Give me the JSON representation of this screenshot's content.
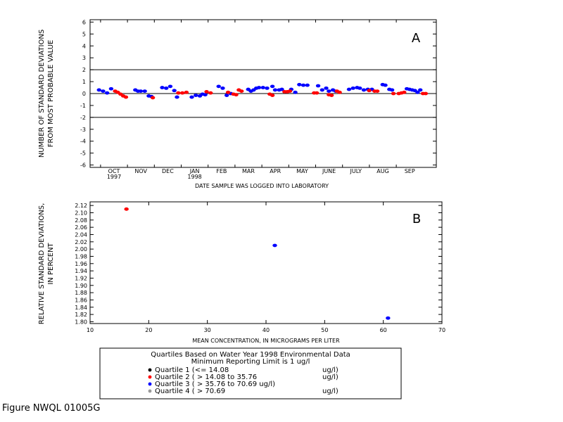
{
  "figure_label": "Figure NWQL 01005G",
  "chart_data": [
    {
      "type": "scatter",
      "panel_letter": "A",
      "xlabel": "DATE SAMPLE WAS LOGGED INTO LABORATORY",
      "ylabel": [
        "NUMBER OF STANDARD DEVIATIONS",
        "FROM MOST PROBABLE VALUE"
      ],
      "categories": [
        "OCT",
        "NOV",
        "DEC",
        "JAN",
        "FEB",
        "MAR",
        "APR",
        "MAY",
        "JUNE",
        "JULY",
        "AUG",
        "SEP"
      ],
      "year_labels": [
        {
          "category": "OCT",
          "text": "1997"
        },
        {
          "category": "JAN",
          "text": "1998"
        }
      ],
      "xlim": [
        0,
        12
      ],
      "ylim": [
        -6.2,
        6.2
      ],
      "yticks": [
        -6,
        -5,
        -4,
        -3,
        -2,
        -1,
        0,
        1,
        2,
        3,
        4,
        5,
        6
      ],
      "reference_lines": [
        2,
        0,
        -2
      ],
      "series": [
        {
          "color": "#0000ff",
          "points": [
            [
              0.15,
              0.3
            ],
            [
              0.3,
              0.2
            ],
            [
              0.45,
              0.05
            ],
            [
              0.6,
              0.4
            ],
            [
              1.5,
              0.3
            ],
            [
              1.6,
              0.2
            ],
            [
              1.7,
              0.2
            ],
            [
              1.85,
              0.2
            ],
            [
              2.0,
              -0.2
            ],
            [
              2.1,
              -0.25
            ],
            [
              2.5,
              0.5
            ],
            [
              2.65,
              0.45
            ],
            [
              2.8,
              0.6
            ],
            [
              2.95,
              0.25
            ],
            [
              3.05,
              -0.3
            ],
            [
              3.6,
              -0.3
            ],
            [
              3.75,
              -0.15
            ],
            [
              3.9,
              -0.2
            ],
            [
              4.0,
              -0.05
            ],
            [
              4.1,
              -0.1
            ],
            [
              4.6,
              0.6
            ],
            [
              4.75,
              0.45
            ],
            [
              4.9,
              -0.15
            ],
            [
              5.05,
              0.0
            ],
            [
              5.7,
              0.35
            ],
            [
              5.8,
              0.2
            ],
            [
              5.9,
              0.3
            ],
            [
              6.0,
              0.45
            ],
            [
              6.1,
              0.5
            ],
            [
              6.25,
              0.5
            ],
            [
              6.4,
              0.45
            ],
            [
              6.6,
              0.6
            ],
            [
              6.7,
              0.3
            ],
            [
              6.85,
              0.3
            ],
            [
              6.95,
              0.35
            ],
            [
              7.3,
              0.35
            ],
            [
              7.45,
              0.1
            ],
            [
              7.6,
              0.75
            ],
            [
              7.75,
              0.7
            ],
            [
              7.9,
              0.7
            ],
            [
              8.3,
              0.65
            ],
            [
              8.45,
              0.3
            ],
            [
              8.6,
              0.45
            ],
            [
              8.7,
              0.2
            ],
            [
              8.85,
              0.3
            ],
            [
              8.95,
              0.2
            ],
            [
              9.45,
              0.35
            ],
            [
              9.6,
              0.45
            ],
            [
              9.75,
              0.5
            ],
            [
              9.85,
              0.45
            ],
            [
              10.0,
              0.3
            ],
            [
              10.15,
              0.35
            ],
            [
              10.3,
              0.35
            ],
            [
              10.7,
              0.75
            ],
            [
              10.8,
              0.7
            ],
            [
              10.95,
              0.35
            ],
            [
              11.05,
              0.3
            ],
            [
              11.6,
              0.4
            ],
            [
              11.7,
              0.35
            ],
            [
              11.8,
              0.3
            ],
            [
              11.9,
              0.25
            ],
            [
              12.0,
              0.1
            ],
            [
              12.1,
              0.3
            ]
          ]
        },
        {
          "color": "#ff0000",
          "points": [
            [
              0.75,
              0.2
            ],
            [
              0.85,
              0.1
            ],
            [
              0.95,
              -0.05
            ],
            [
              1.05,
              -0.2
            ],
            [
              1.15,
              -0.3
            ],
            [
              2.15,
              -0.35
            ],
            [
              3.1,
              0.05
            ],
            [
              3.25,
              0.05
            ],
            [
              3.4,
              0.1
            ],
            [
              4.15,
              0.15
            ],
            [
              4.3,
              0.05
            ],
            [
              4.95,
              0.1
            ],
            [
              5.15,
              -0.05
            ],
            [
              5.25,
              -0.1
            ],
            [
              5.35,
              0.3
            ],
            [
              5.45,
              0.2
            ],
            [
              6.5,
              -0.05
            ],
            [
              6.6,
              -0.15
            ],
            [
              7.05,
              0.15
            ],
            [
              7.15,
              0.15
            ],
            [
              7.25,
              0.2
            ],
            [
              8.15,
              0.05
            ],
            [
              8.25,
              0.05
            ],
            [
              8.7,
              -0.1
            ],
            [
              8.8,
              -0.15
            ],
            [
              9.0,
              0.2
            ],
            [
              9.1,
              0.1
            ],
            [
              10.2,
              0.25
            ],
            [
              10.4,
              0.2
            ],
            [
              10.5,
              0.2
            ],
            [
              11.1,
              0.0
            ],
            [
              11.3,
              0.0
            ],
            [
              11.4,
              0.05
            ],
            [
              11.5,
              0.1
            ],
            [
              12.2,
              0.0
            ],
            [
              12.3,
              0.0
            ]
          ]
        }
      ]
    },
    {
      "type": "scatter",
      "panel_letter": "B",
      "xlabel": "MEAN CONCENTRATION, IN MICROGRAMS PER LITER",
      "ylabel": [
        "RELATIVE STANDARD DEVIATIONS,",
        "IN PERCENT"
      ],
      "xlim": [
        10,
        70
      ],
      "xticks": [
        10,
        20,
        30,
        40,
        50,
        60,
        70
      ],
      "ylim": [
        1.795,
        2.13
      ],
      "yticks": [
        1.8,
        1.82,
        1.84,
        1.86,
        1.88,
        1.9,
        1.92,
        1.94,
        1.96,
        1.98,
        2.0,
        2.02,
        2.04,
        2.06,
        2.08,
        2.1,
        2.12
      ],
      "series": [
        {
          "color": "#ff0000",
          "points": [
            [
              16.2,
              2.11
            ]
          ]
        },
        {
          "color": "#0000ff",
          "points": [
            [
              41.5,
              2.01
            ],
            [
              60.8,
              1.81
            ]
          ]
        }
      ]
    }
  ],
  "legend": {
    "title_line1": "Quartiles Based on Water Year 1998 Environmental Data",
    "title_line2": "Minimum Reporting Limit is 1 ug/l",
    "items": [
      {
        "color": "#000000",
        "label": "Quartile 1 (<= 14.08",
        "unit": "ug/l)"
      },
      {
        "color": "#ff0000",
        "label": "Quartile 2 ( > 14.08 to 35.76",
        "unit": "ug/l)"
      },
      {
        "color": "#0000ff",
        "label": "Quartile 3 ( > 35.76 to 70.69 ug/l)",
        "unit": ""
      },
      {
        "color": "#999999",
        "label": "Quartile 4 ( > 70.69",
        "unit": "ug/l)"
      }
    ]
  }
}
